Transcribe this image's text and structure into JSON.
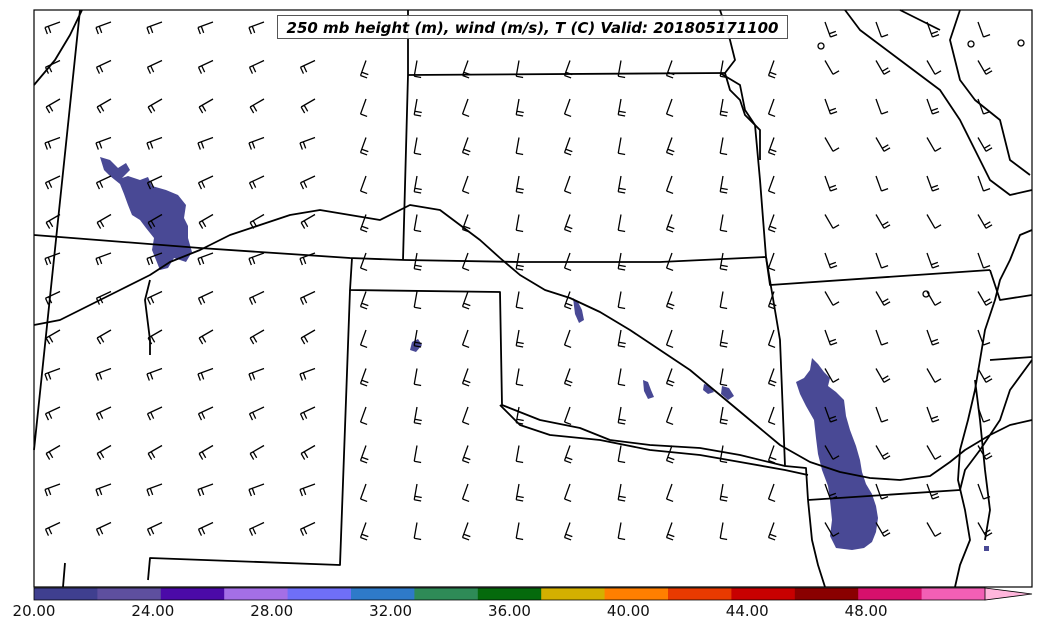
{
  "title": "250 mb height (m), wind (m/s), T (C) Valid: 201805171100",
  "colorbar": {
    "tick_labels": [
      "20.00",
      "24.00",
      "28.00",
      "32.00",
      "36.00",
      "40.00",
      "44.00",
      "48.00"
    ],
    "min": 20,
    "max": 52,
    "colors": [
      "#3f3f8f",
      "#5e4f9f",
      "#4b0aa8",
      "#a46fe6",
      "#6f6ff8",
      "#2e7ac9",
      "#2e8b57",
      "#056a0c",
      "#d4b000",
      "#ff7f00",
      "#e83a00",
      "#c80000",
      "#8a0000",
      "#d6106c",
      "#f25fb5",
      "#ffb6dc"
    ]
  },
  "layers": {
    "temperature_fill": "#3f3f8f",
    "boundaries": "#000000",
    "wind_barbs": "#000000"
  }
}
